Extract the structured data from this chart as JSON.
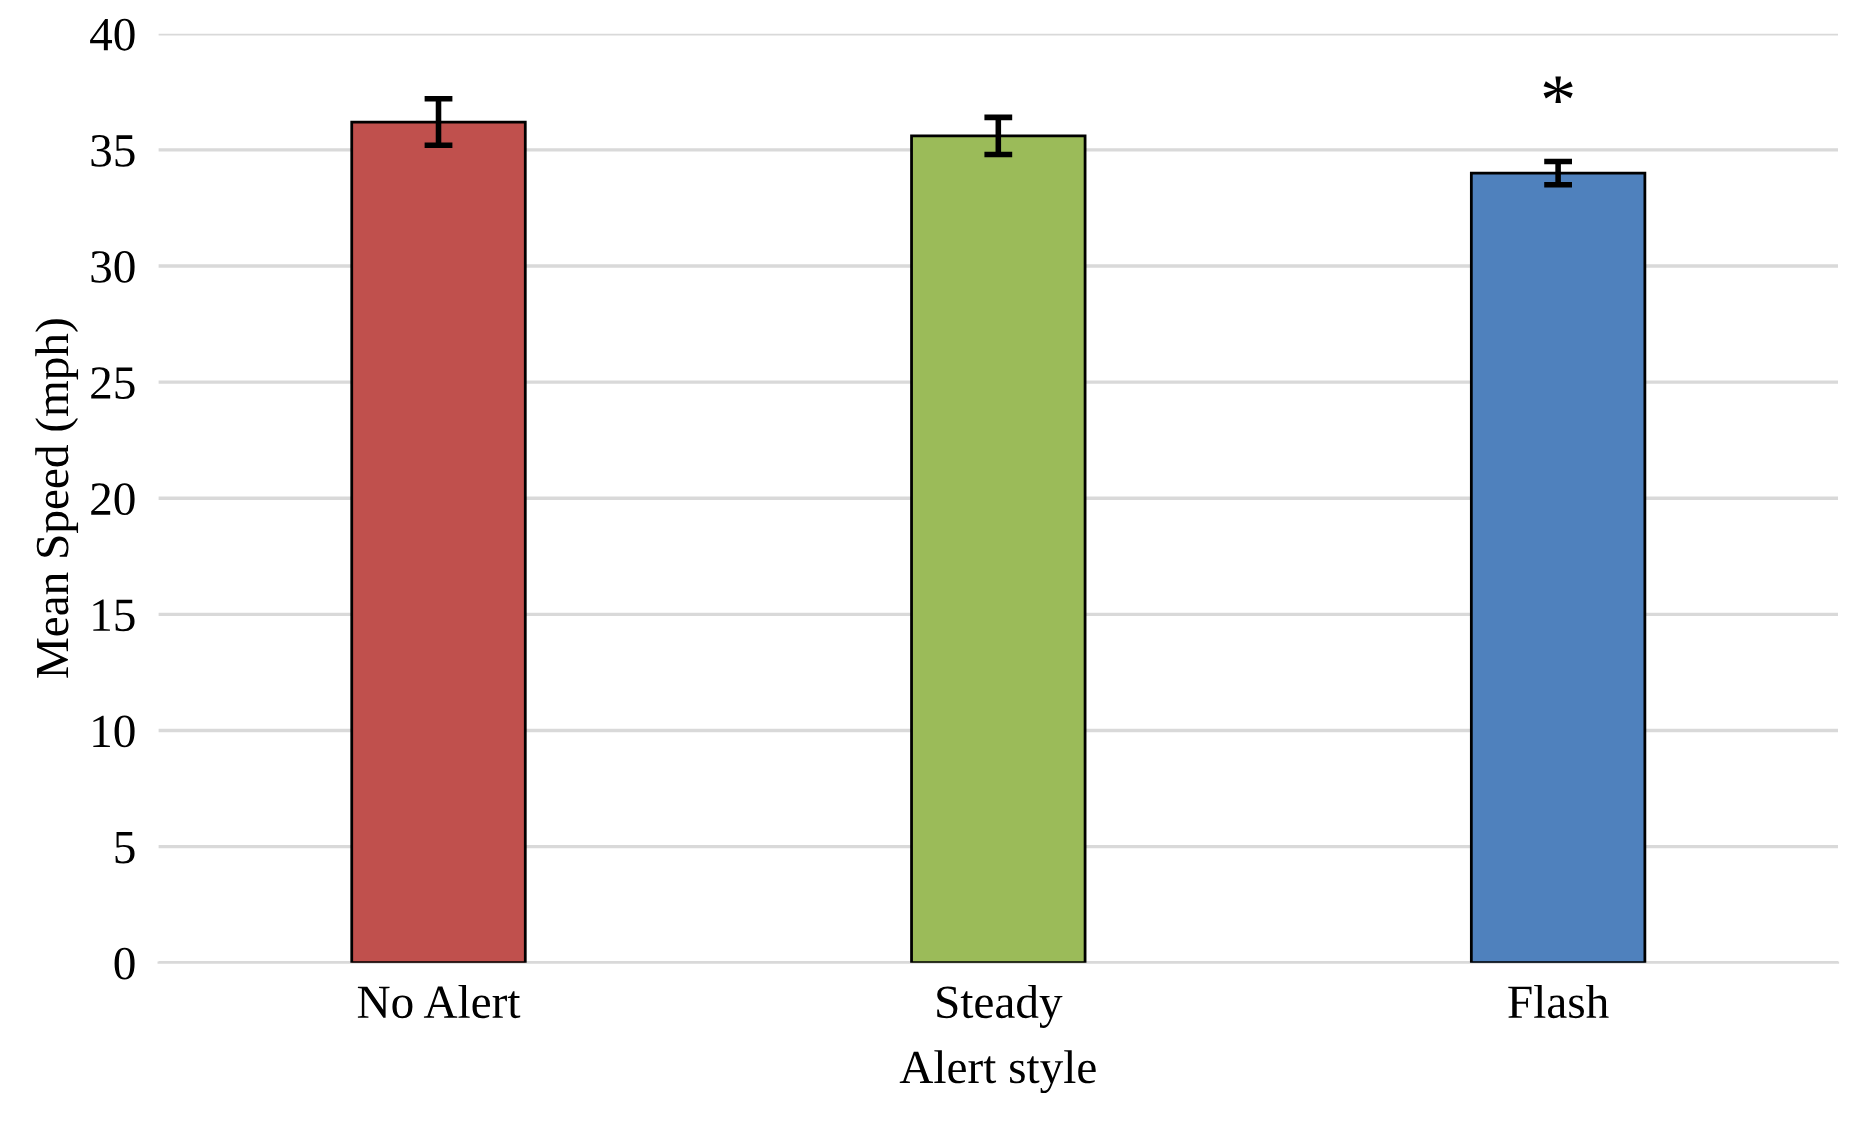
{
  "chart_data": {
    "type": "bar",
    "xlabel": "Alert style",
    "ylabel": "Mean Speed (mph)",
    "categories": [
      "No Alert",
      "Steady",
      "Flash"
    ],
    "values": [
      36.2,
      35.6,
      34.0
    ],
    "errors": [
      1.0,
      0.8,
      0.5
    ],
    "colors": [
      "#c0504d",
      "#9bbb59",
      "#4f81bd"
    ],
    "ylim": [
      0,
      40
    ],
    "yticks": [
      0,
      5,
      10,
      15,
      20,
      25,
      30,
      35,
      40
    ],
    "grid": "y",
    "annotations": [
      "*"
    ]
  }
}
